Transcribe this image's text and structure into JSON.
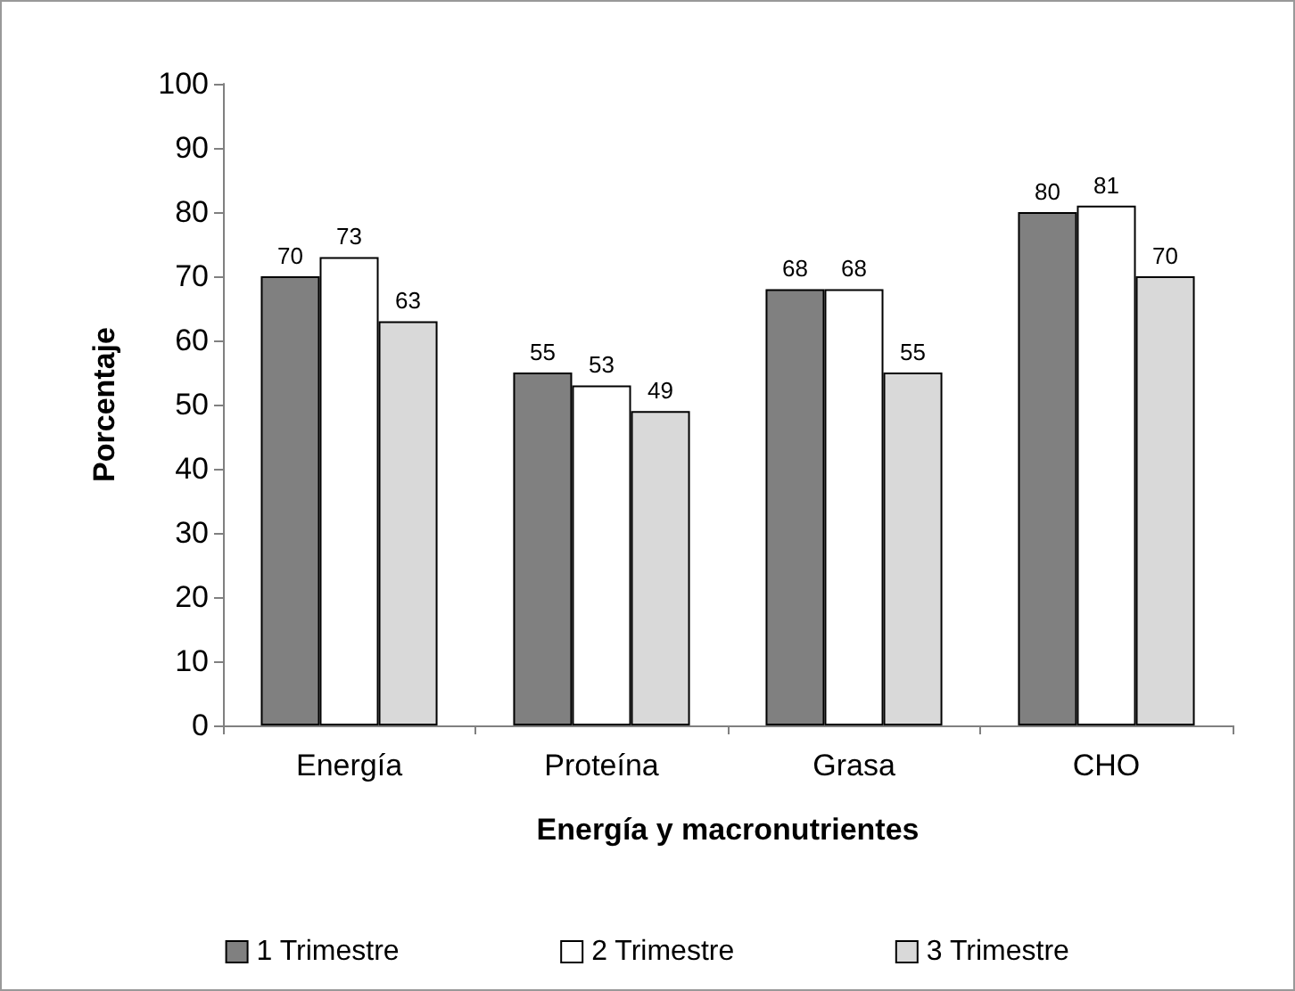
{
  "chart_data": {
    "type": "bar",
    "xlabel": "Energía y macronutrientes",
    "ylabel": "Porcentaje",
    "categories": [
      "Energía",
      "Proteína",
      "Grasa",
      "CHO"
    ],
    "series": [
      {
        "name": "1 Trimestre",
        "color": "#808080",
        "values": [
          70,
          55,
          68,
          80
        ]
      },
      {
        "name": "2 Trimestre",
        "color": "#ffffff",
        "values": [
          73,
          53,
          68,
          81
        ]
      },
      {
        "name": "3 Trimestre",
        "color": "#d9d9d9",
        "values": [
          63,
          49,
          55,
          70
        ]
      }
    ],
    "ylim": [
      0,
      100
    ],
    "yticks": [
      0,
      10,
      20,
      30,
      40,
      50,
      60,
      70,
      80,
      90,
      100
    ],
    "data_labels": true,
    "grid": false,
    "legend": "bottom"
  }
}
